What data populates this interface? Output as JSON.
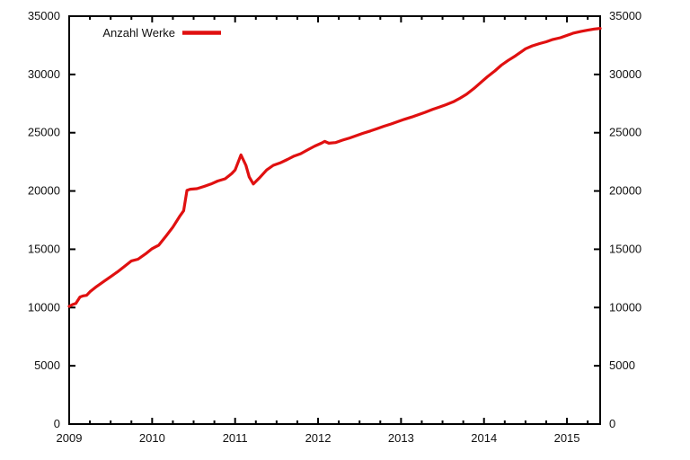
{
  "chart": {
    "background": "#ffffff",
    "axis_color": "#000000",
    "text_color": "#111111",
    "line_color": "#e01010"
  },
  "chart_data": {
    "type": "line",
    "title": "",
    "xlabel": "",
    "ylabel": "",
    "grid": false,
    "legend_position": "top-left-inside",
    "xlim": [
      2009,
      2015.4
    ],
    "ylim": [
      0,
      35000
    ],
    "x_ticks": [
      2009,
      2010,
      2011,
      2012,
      2013,
      2014,
      2015
    ],
    "x_minor_step": 0.25,
    "y_ticks": [
      0,
      5000,
      10000,
      15000,
      20000,
      25000,
      30000,
      35000
    ],
    "y_axis_mirrored": true,
    "series": [
      {
        "name": "Anzahl Werke",
        "color": "#e01010",
        "x": [
          2009.0,
          2009.04,
          2009.08,
          2009.13,
          2009.17,
          2009.21,
          2009.25,
          2009.33,
          2009.42,
          2009.5,
          2009.58,
          2009.67,
          2009.75,
          2009.83,
          2009.92,
          2010.0,
          2010.04,
          2010.08,
          2010.17,
          2010.25,
          2010.33,
          2010.38,
          2010.42,
          2010.46,
          2010.54,
          2010.63,
          2010.71,
          2010.79,
          2010.88,
          2010.96,
          2011.0,
          2011.07,
          2011.13,
          2011.17,
          2011.22,
          2011.29,
          2011.38,
          2011.46,
          2011.54,
          2011.63,
          2011.71,
          2011.79,
          2011.88,
          2011.96,
          2012.04,
          2012.08,
          2012.13,
          2012.21,
          2012.29,
          2012.38,
          2012.46,
          2012.54,
          2012.63,
          2012.71,
          2012.79,
          2012.88,
          2012.96,
          2013.04,
          2013.13,
          2013.21,
          2013.29,
          2013.38,
          2013.46,
          2013.54,
          2013.63,
          2013.71,
          2013.79,
          2013.88,
          2013.96,
          2014.04,
          2014.13,
          2014.21,
          2014.29,
          2014.38,
          2014.46,
          2014.5,
          2014.58,
          2014.67,
          2014.75,
          2014.83,
          2014.92,
          2015.0,
          2015.08,
          2015.17,
          2015.25,
          2015.33,
          2015.4
        ],
        "y": [
          10100,
          10250,
          10350,
          10900,
          11000,
          11050,
          11350,
          11800,
          12250,
          12650,
          13050,
          13550,
          14000,
          14150,
          14600,
          15050,
          15200,
          15350,
          16150,
          16900,
          17800,
          18300,
          20050,
          20150,
          20200,
          20400,
          20600,
          20850,
          21050,
          21500,
          21800,
          23100,
          22200,
          21200,
          20600,
          21100,
          21800,
          22200,
          22400,
          22700,
          23000,
          23200,
          23550,
          23850,
          24100,
          24250,
          24100,
          24150,
          24350,
          24550,
          24750,
          24950,
          25150,
          25350,
          25550,
          25750,
          25950,
          26150,
          26350,
          26550,
          26750,
          27000,
          27200,
          27400,
          27650,
          27950,
          28300,
          28800,
          29300,
          29800,
          30300,
          30800,
          31200,
          31600,
          32000,
          32200,
          32450,
          32650,
          32800,
          33000,
          33150,
          33350,
          33550,
          33700,
          33800,
          33900,
          33950
        ]
      }
    ]
  }
}
